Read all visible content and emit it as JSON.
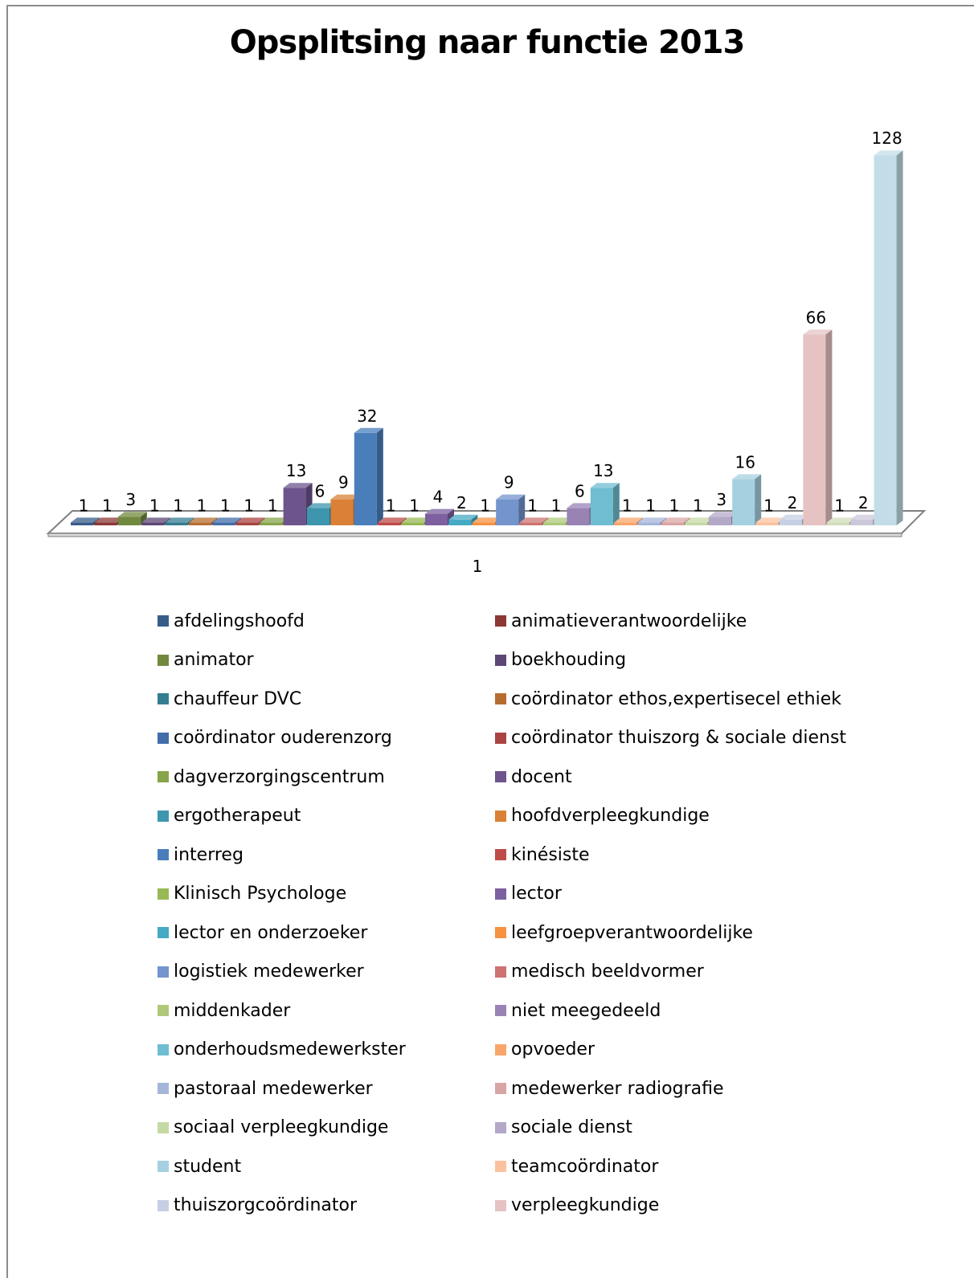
{
  "chart_data": {
    "type": "bar",
    "title": "Opsplitsing naar functie 2013",
    "categories": [
      "1"
    ],
    "legend_position": "bottom",
    "grid": false,
    "series": [
      {
        "name": "afdelingshoofd",
        "value": 1,
        "color": "#385d8a"
      },
      {
        "name": "animatieverantwoordelijke",
        "value": 1,
        "color": "#8c3836"
      },
      {
        "name": "animator",
        "value": 3,
        "color": "#71893f"
      },
      {
        "name": "boekhouding",
        "value": 1,
        "color": "#5c4776"
      },
      {
        "name": "chauffeur DVC",
        "value": 1,
        "color": "#357d91"
      },
      {
        "name": "coördinator ethos,expertisecel ethiek",
        "value": 1,
        "color": "#b66d31"
      },
      {
        "name": "coördinator ouderenzorg",
        "value": 1,
        "color": "#426da9"
      },
      {
        "name": "coördinator thuiszorg & sociale dienst",
        "value": 1,
        "color": "#a94442"
      },
      {
        "name": "dagverzorgingscentrum",
        "value": 1,
        "color": "#86a44a"
      },
      {
        "name": "docent",
        "value": 13,
        "color": "#6e548d"
      },
      {
        "name": "ergotherapeut",
        "value": 6,
        "color": "#3d96ae"
      },
      {
        "name": "hoofdverpleegkundige",
        "value": 9,
        "color": "#da8137"
      },
      {
        "name": "interreg",
        "value": 32,
        "color": "#4a7ebb"
      },
      {
        "name": "kinésiste",
        "value": 1,
        "color": "#be4b48"
      },
      {
        "name": "Klinisch Psychologe",
        "value": 1,
        "color": "#98b954"
      },
      {
        "name": "lector",
        "value": 4,
        "color": "#7d60a0"
      },
      {
        "name": "lector en onderzoeker",
        "value": 2,
        "color": "#46aac5"
      },
      {
        "name": "leefgroepverantwoordelijke",
        "value": 1,
        "color": "#f69240"
      },
      {
        "name": "logistiek medewerker",
        "value": 9,
        "color": "#7394cd"
      },
      {
        "name": "medisch beeldvormer",
        "value": 1,
        "color": "#cd7371"
      },
      {
        "name": "middenkader",
        "value": 1,
        "color": "#afc97a"
      },
      {
        "name": "niet meegedeeld",
        "value": 6,
        "color": "#9983b5"
      },
      {
        "name": "onderhoudsmedewerkster",
        "value": 13,
        "color": "#6fbdd1"
      },
      {
        "name": "opvoeder",
        "value": 1,
        "color": "#f9a66b"
      },
      {
        "name": "pastoraal medewerker",
        "value": 1,
        "color": "#a5b6d9"
      },
      {
        "name": "medewerker radiografie",
        "value": 1,
        "color": "#d9a5a4"
      },
      {
        "name": "sociaal verpleegkundige",
        "value": 1,
        "color": "#c5d9a5"
      },
      {
        "name": "sociale dienst",
        "value": 3,
        "color": "#b4a8c9"
      },
      {
        "name": "student",
        "value": 16,
        "color": "#a5d0df"
      },
      {
        "name": "teamcoördinator",
        "value": 1,
        "color": "#fbc19f"
      },
      {
        "name": "thuiszorgcoördinator",
        "value": 2,
        "color": "#c6d0e4"
      },
      {
        "name": "verpleegkundige",
        "value": 66,
        "color": "#e6c3c3"
      },
      {
        "name": "",
        "value": 1,
        "color": "#d1ddb9"
      },
      {
        "name": "",
        "value": 2,
        "color": "#cdc7da"
      },
      {
        "name": "",
        "value": 128,
        "color": "#c3dde8"
      }
    ]
  }
}
